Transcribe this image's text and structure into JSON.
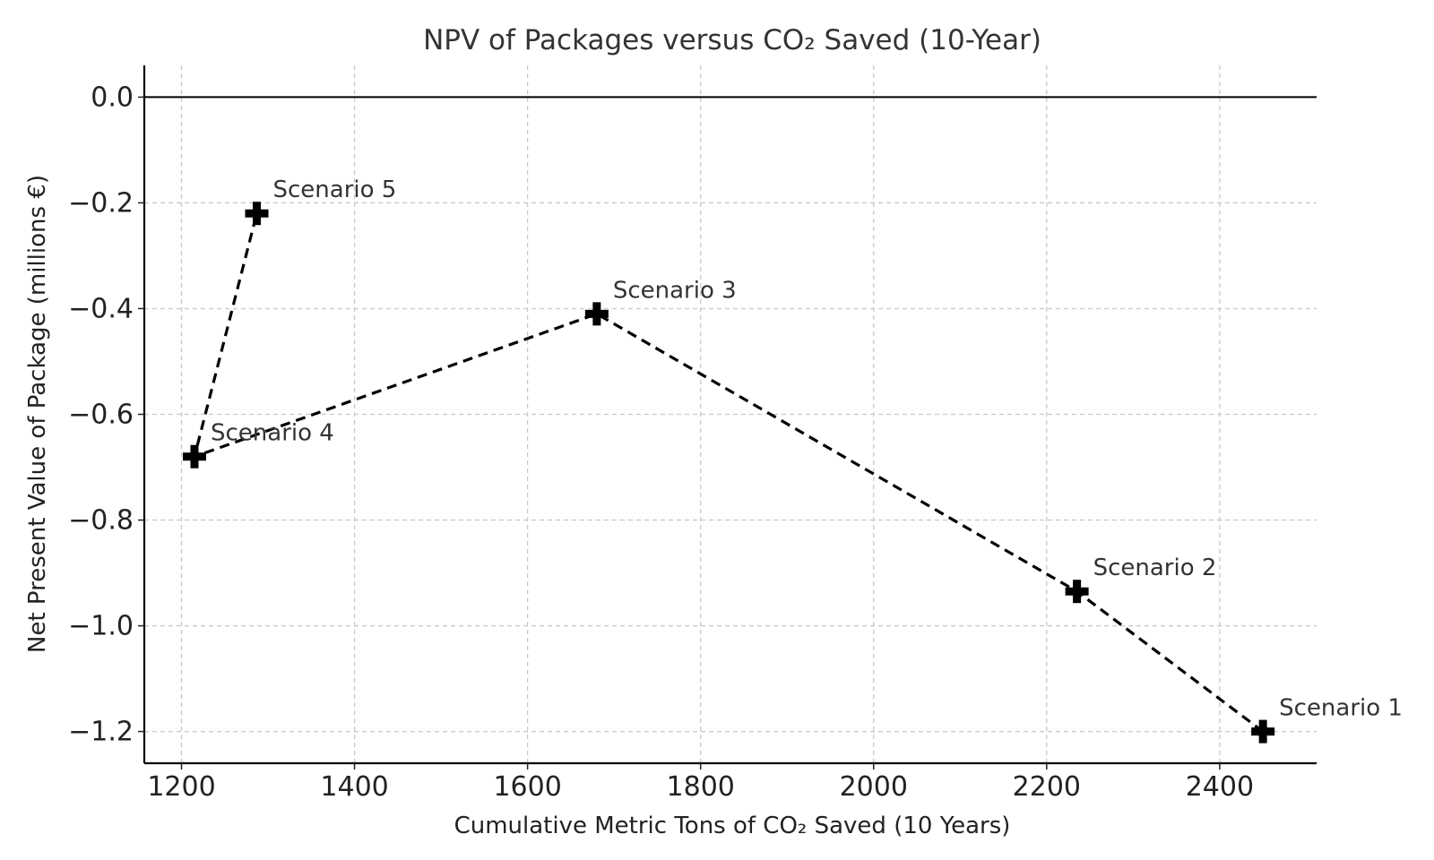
{
  "chart_data": {
    "type": "line",
    "title": "NPV of Packages versus CO₂ Saved (10-Year)",
    "xlabel": "Cumulative Metric Tons of CO₂ Saved (10 Years)",
    "ylabel": "Net Present Value of Package (millions €)",
    "xlim": [
      1157,
      2512
    ],
    "ylim": [
      -1.26,
      0.06
    ],
    "xticks": [
      1200,
      1400,
      1600,
      1800,
      2000,
      2200,
      2400
    ],
    "xtick_labels": [
      "1200",
      "1400",
      "1600",
      "1800",
      "2000",
      "2200",
      "2400"
    ],
    "yticks": [
      0.0,
      -0.2,
      -0.4,
      -0.6,
      -0.8,
      -1.0,
      -1.2
    ],
    "ytick_labels": [
      "0.0",
      "−0.2",
      "−0.4",
      "−0.6",
      "−0.8",
      "−1.0",
      "−1.2"
    ],
    "grid": true,
    "reference_line_y": 0.0,
    "marker": "plus",
    "line_style": "dashed",
    "color": "#000000",
    "series": [
      {
        "points": [
          {
            "label": "Scenario 1",
            "x": 2450,
            "y": -1.2
          },
          {
            "label": "Scenario 2",
            "x": 2235,
            "y": -0.935
          },
          {
            "label": "Scenario 3",
            "x": 1680,
            "y": -0.41
          },
          {
            "label": "Scenario 4",
            "x": 1215,
            "y": -0.68
          },
          {
            "label": "Scenario 5",
            "x": 1287,
            "y": -0.22
          }
        ]
      }
    ]
  }
}
